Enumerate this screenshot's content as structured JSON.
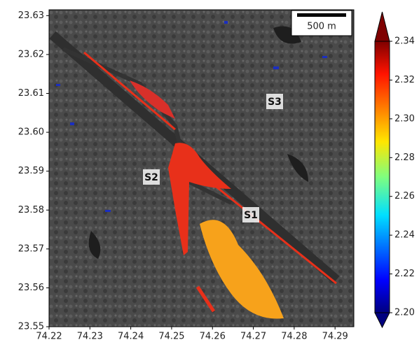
{
  "map": {
    "xlim": [
      74.22,
      74.2946
    ],
    "ylim": [
      23.55,
      23.6315
    ],
    "xticks": [
      74.22,
      74.23,
      74.24,
      74.25,
      74.26,
      74.27,
      74.28,
      74.29
    ],
    "yticks": [
      23.55,
      23.56,
      23.57,
      23.58,
      23.59,
      {
        "value": 23.6,
        "label": "23.60"
      },
      23.61,
      23.62,
      23.63
    ],
    "scale_bar": "500 m",
    "site_labels": [
      "S1",
      "S2",
      "S3"
    ],
    "colorbar": {
      "clim": [
        2.2,
        2.34
      ],
      "ticks": [
        {
          "value": 2.2,
          "label": "2.20"
        },
        2.22,
        2.24,
        2.26,
        2.28,
        {
          "value": 2.3,
          "label": "2.30"
        },
        2.32,
        2.34
      ]
    }
  }
}
